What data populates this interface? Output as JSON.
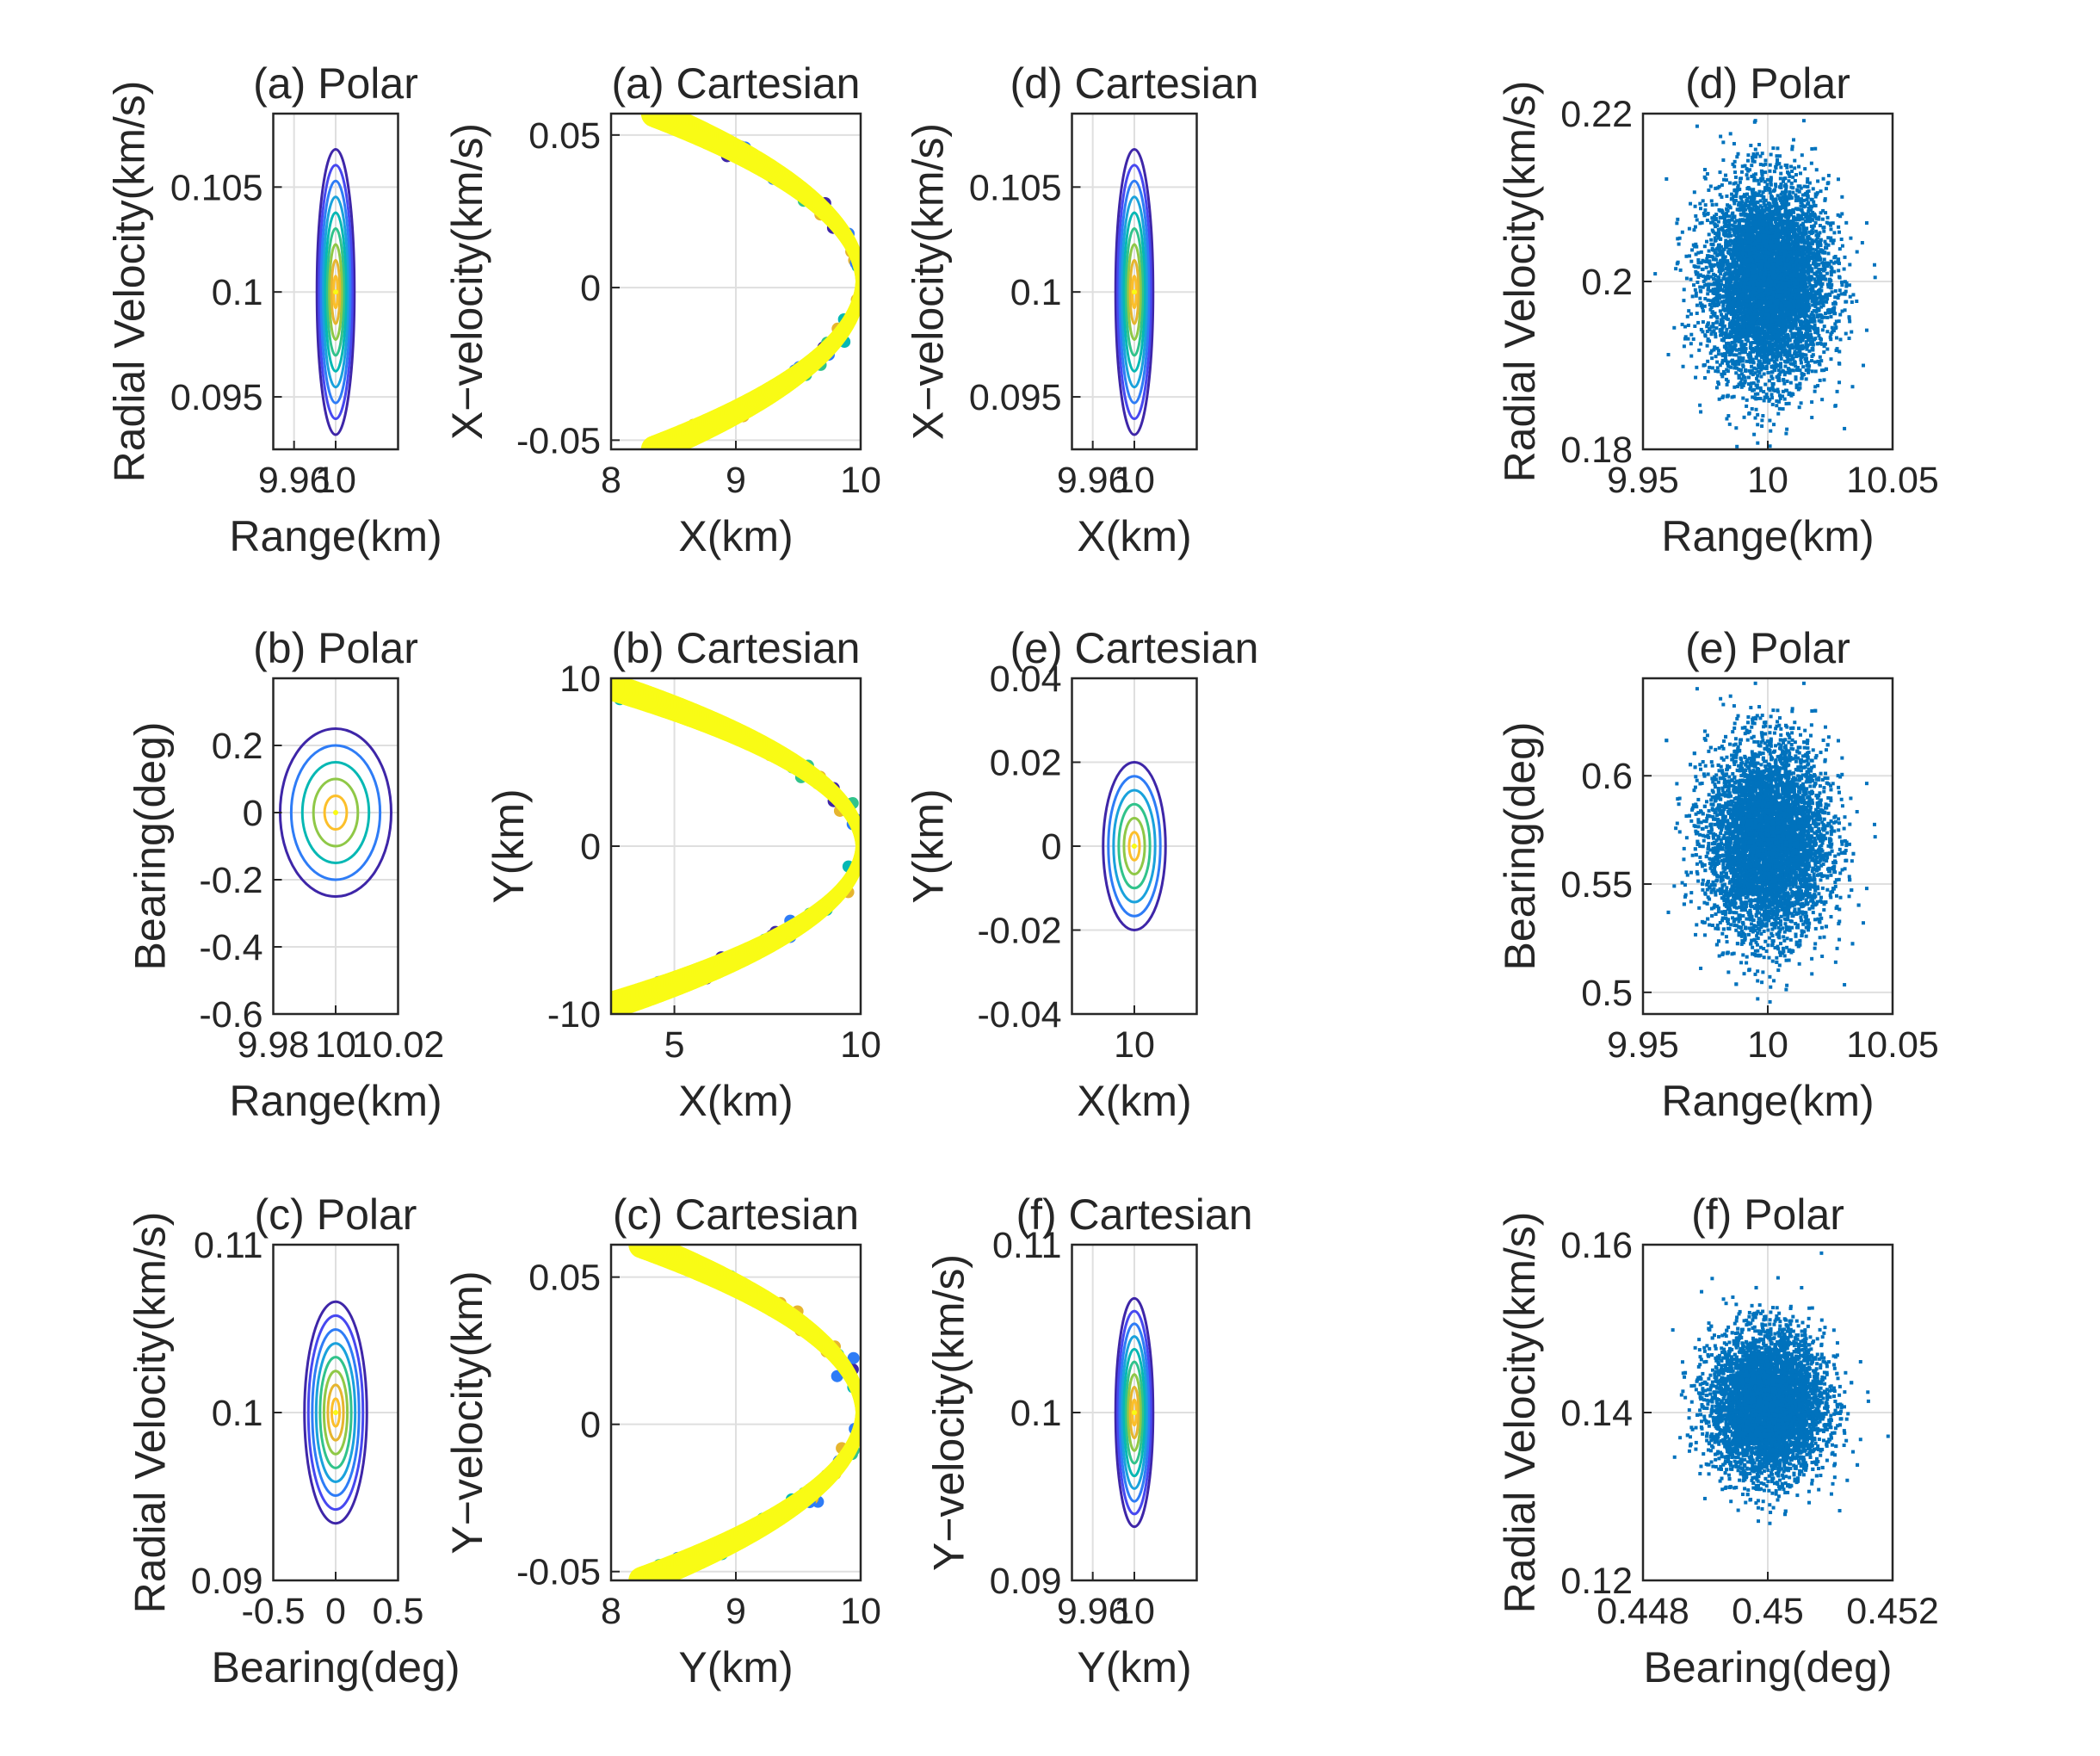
{
  "chart_data": [
    {
      "id": "a-polar",
      "type": "contour",
      "title": "(a) Polar",
      "xlabel": "Range(km)",
      "ylabel": "Radial Velocity(km/s)",
      "xlim": [
        9.94,
        10.06
      ],
      "ylim": [
        0.0925,
        0.1085
      ],
      "xticks": [
        9.96,
        10
      ],
      "xticklabels": [
        "9.96",
        "10"
      ],
      "yticks": [
        0.095,
        0.1,
        0.105
      ],
      "yticklabels": [
        "0.095",
        "0.1",
        "0.105"
      ],
      "center": [
        10,
        0.1
      ],
      "semi_axes": [
        0.018,
        0.0068
      ],
      "levels": 9,
      "grid": true
    },
    {
      "id": "a-cartesian",
      "type": "scatter_arc",
      "title": "(a) Cartesian",
      "xlabel": "X(km)",
      "ylabel": "X−velocity(km/s)",
      "xlim": [
        8,
        10
      ],
      "ylim": [
        -0.053,
        0.057
      ],
      "xticks": [
        8,
        9,
        10
      ],
      "xticklabels": [
        "8",
        "9",
        "10"
      ],
      "yticks": [
        -0.05,
        0,
        0.05
      ],
      "yticklabels": [
        "-0.05",
        "0",
        "0.05"
      ],
      "arc": {
        "x_range": [
          8.35,
          10
        ],
        "y_range": [
          -0.053,
          0.057
        ]
      },
      "grid": true
    },
    {
      "id": "d-cartesian",
      "type": "contour",
      "title": "(d) Cartesian",
      "xlabel": "X(km)",
      "ylabel": "X−velocity(km/s)",
      "xlim": [
        9.94,
        10.06
      ],
      "ylim": [
        0.0925,
        0.1085
      ],
      "xticks": [
        9.96,
        10
      ],
      "xticklabels": [
        "9.96",
        "10"
      ],
      "yticks": [
        0.095,
        0.1,
        0.105
      ],
      "yticklabels": [
        "0.095",
        "0.1",
        "0.105"
      ],
      "center": [
        10,
        0.1
      ],
      "semi_axes": [
        0.018,
        0.0068
      ],
      "levels": 9,
      "grid": true
    },
    {
      "id": "d-polar",
      "type": "scatter_cloud",
      "title": "(d) Polar",
      "xlabel": "Range(km)",
      "ylabel": "Radial Velocity(km/s)",
      "xlim": [
        9.95,
        10.05
      ],
      "ylim": [
        0.18,
        0.22
      ],
      "xticks": [
        9.95,
        10,
        10.05
      ],
      "xticklabels": [
        "9.95",
        "10",
        "10.05"
      ],
      "yticks": [
        0.18,
        0.2,
        0.22
      ],
      "yticklabels": [
        "0.18",
        "0.2",
        "0.22"
      ],
      "center": [
        10,
        0.2
      ],
      "spread": [
        0.012,
        0.0058
      ],
      "grid": true
    },
    {
      "id": "b-polar",
      "type": "contour",
      "title": "(b) Polar",
      "xlabel": "Range(km)",
      "ylabel": "Bearing(deg)",
      "xlim": [
        9.98,
        10.02
      ],
      "ylim": [
        -0.6,
        0.4
      ],
      "xticks": [
        9.98,
        10,
        10.02
      ],
      "xticklabels": [
        "9.98",
        "10",
        "10.02"
      ],
      "yticks": [
        -0.6,
        -0.4,
        -0.2,
        0,
        0.2
      ],
      "yticklabels": [
        "-0.6",
        "-0.4",
        "-0.2",
        "0",
        "0.2"
      ],
      "center": [
        10,
        0
      ],
      "semi_axes": [
        0.0178,
        0.25
      ],
      "levels": 5,
      "grid": true
    },
    {
      "id": "b-cartesian",
      "type": "scatter_arc",
      "title": "(b) Cartesian",
      "xlabel": "X(km)",
      "ylabel": "Y(km)",
      "xlim": [
        3.3,
        10
      ],
      "ylim": [
        -10,
        10
      ],
      "xticks": [
        5,
        10
      ],
      "xticklabels": [
        "5",
        "10"
      ],
      "yticks": [
        -10,
        0,
        10
      ],
      "yticklabels": [
        "-10",
        "0",
        "10"
      ],
      "arc": {
        "x_range": [
          3.3,
          10
        ],
        "y_range": [
          -9.5,
          9.5
        ]
      },
      "grid": true
    },
    {
      "id": "e-cartesian",
      "type": "contour",
      "title": "(e) Cartesian",
      "xlabel": "X(km)",
      "ylabel": "Y(km)",
      "xlim": [
        9.965,
        10.035
      ],
      "ylim": [
        -0.04,
        0.04
      ],
      "xticks": [
        10
      ],
      "xticklabels": [
        "10"
      ],
      "yticks": [
        -0.04,
        -0.02,
        0,
        0.02,
        0.04
      ],
      "yticklabels": [
        "-0.04",
        "-0.02",
        "0",
        "0.02",
        "0.04"
      ],
      "center": [
        10,
        0
      ],
      "semi_axes": [
        0.0175,
        0.02
      ],
      "levels": 6,
      "grid": true
    },
    {
      "id": "e-polar",
      "type": "scatter_cloud",
      "title": "(e) Polar",
      "xlabel": "Range(km)",
      "ylabel": "Bearing(deg)",
      "xlim": [
        9.95,
        10.05
      ],
      "ylim": [
        0.49,
        0.645
      ],
      "xticks": [
        9.95,
        10,
        10.05
      ],
      "xticklabels": [
        "9.95",
        "10",
        "10.05"
      ],
      "yticks": [
        0.5,
        0.55,
        0.6
      ],
      "yticklabels": [
        "0.5",
        "0.55",
        "0.6"
      ],
      "center": [
        10,
        0.57
      ],
      "spread": [
        0.012,
        0.022
      ],
      "grid": true
    },
    {
      "id": "c-polar",
      "type": "contour",
      "title": "(c) Polar",
      "xlabel": "Bearing(deg)",
      "ylabel": "Radial Velocity(km/s)",
      "xlim": [
        -0.5,
        0.5
      ],
      "ylim": [
        0.09,
        0.11
      ],
      "xticks": [
        -0.5,
        0,
        0.5
      ],
      "xticklabels": [
        "-0.5",
        "0",
        "0.5"
      ],
      "yticks": [
        0.09,
        0.1,
        0.11
      ],
      "yticklabels": [
        "0.09",
        "0.1",
        "0.11"
      ],
      "center": [
        0,
        0.1
      ],
      "semi_axes": [
        0.25,
        0.0066
      ],
      "levels": 8,
      "grid": true
    },
    {
      "id": "c-cartesian",
      "type": "scatter_arc",
      "title": "(c) Cartesian",
      "xlabel": "Y(km)",
      "ylabel": "Y−velocity(km)",
      "xlim": [
        8,
        10
      ],
      "ylim": [
        -0.053,
        0.061
      ],
      "xticks": [
        8,
        9,
        10
      ],
      "xticklabels": [
        "8",
        "9",
        "10"
      ],
      "yticks": [
        -0.05,
        0,
        0.05
      ],
      "yticklabels": [
        "-0.05",
        "0",
        "0.05"
      ],
      "arc": {
        "x_range": [
          8.25,
          10
        ],
        "y_range": [
          -0.053,
          0.061
        ]
      },
      "grid": true
    },
    {
      "id": "f-cartesian",
      "type": "contour",
      "title": "(f) Cartesian",
      "xlabel": "Y(km)",
      "ylabel": "Y−velocity(km/s)",
      "xlim": [
        9.94,
        10.06
      ],
      "ylim": [
        0.09,
        0.11
      ],
      "xticks": [
        9.96,
        10
      ],
      "xticklabels": [
        "9.96",
        "10"
      ],
      "yticks": [
        0.09,
        0.1,
        0.11
      ],
      "yticklabels": [
        "0.09",
        "0.1",
        "0.11"
      ],
      "center": [
        10,
        0.1
      ],
      "semi_axes": [
        0.018,
        0.0068
      ],
      "levels": 9,
      "grid": true
    },
    {
      "id": "f-polar",
      "type": "scatter_cloud",
      "title": "(f) Polar",
      "xlabel": "Bearing(deg)",
      "ylabel": "Radial Velocity(km/s)",
      "xlim": [
        0.448,
        0.452
      ],
      "ylim": [
        0.12,
        0.16
      ],
      "xticks": [
        0.448,
        0.45,
        0.452
      ],
      "xticklabels": [
        "0.448",
        "0.45",
        "0.452"
      ],
      "yticks": [
        0.12,
        0.14,
        0.16
      ],
      "yticklabels": [
        "0.12",
        "0.14",
        "0.16"
      ],
      "center": [
        0.45,
        0.141
      ],
      "spread": [
        0.00045,
        0.0042
      ],
      "grid": true
    }
  ],
  "colors": {
    "contour_levels": [
      "#3e26a8",
      "#4748f0",
      "#2e7cf6",
      "#1aa2dc",
      "#06b8b4",
      "#31c38b",
      "#8fc847",
      "#e6b52f",
      "#fcbf2a",
      "#f9fb15"
    ],
    "scatter": "#0072bd",
    "arc_core": "#f9fb15",
    "grid": "#dfdfdf",
    "axes": "#262626"
  }
}
